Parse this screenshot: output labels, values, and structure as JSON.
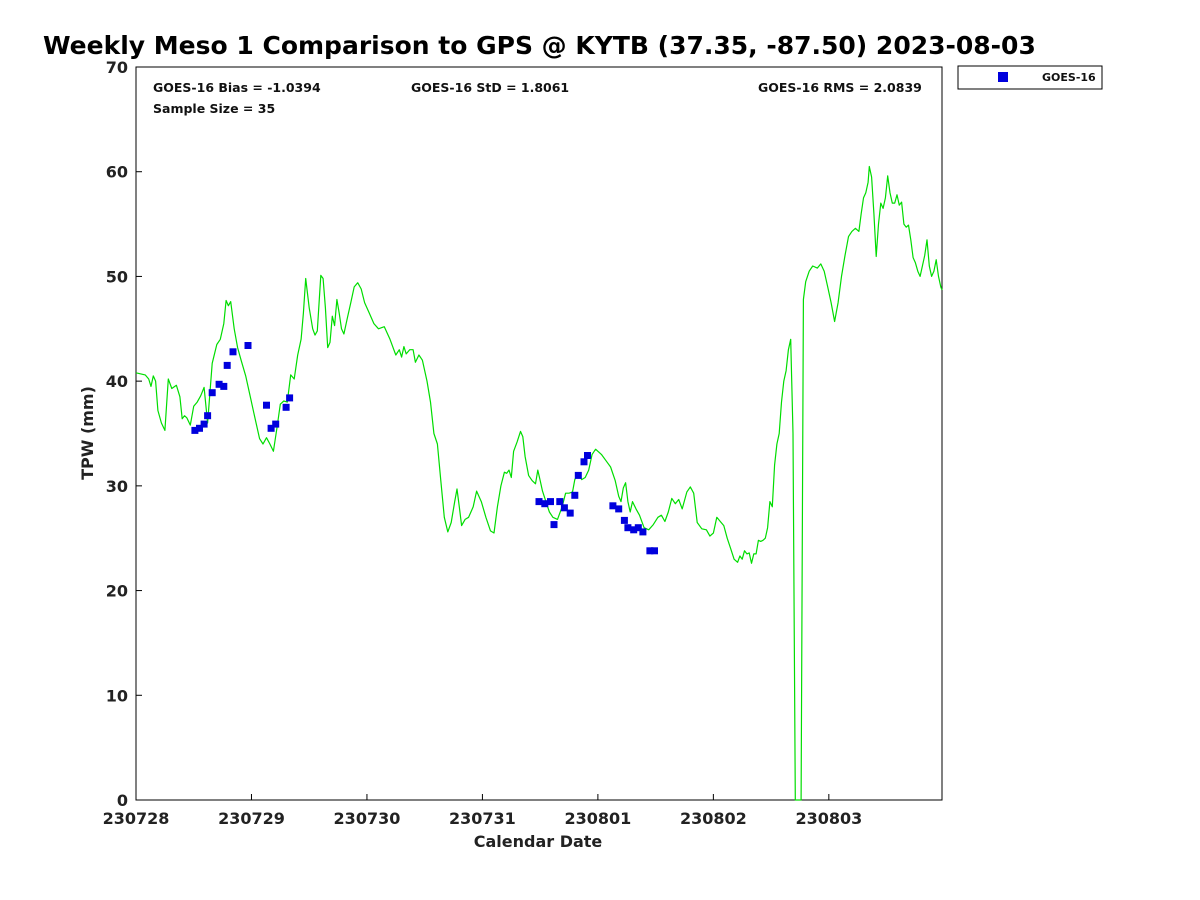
{
  "chart_data": {
    "type": "scatter",
    "title": "Weekly Meso 1 Comparison to GPS @ KYTB (37.35, -87.50) 2023-08-03",
    "xlabel": "Calendar Date",
    "ylabel": "TPW (mm)",
    "xlim": [
      0,
      6.98
    ],
    "ylim": [
      0,
      70
    ],
    "yticks": [
      0,
      10,
      20,
      30,
      40,
      50,
      60,
      70
    ],
    "xtick_positions": [
      0,
      1,
      2,
      3,
      4,
      5,
      6
    ],
    "xtick_labels": [
      "230728",
      "230729",
      "230730",
      "230731",
      "230801",
      "230802",
      "230803"
    ],
    "stats": {
      "bias": "GOES-16 Bias = -1.0394",
      "std": "GOES-16 StD = 1.8061",
      "rms": "GOES-16 RMS = 2.0839",
      "sample": "Sample Size = 35"
    },
    "legend": {
      "position": "top-right-outside",
      "label": "GOES-16"
    },
    "colors": {
      "gps_line": "#00dd00",
      "goes_points": "#0000dd",
      "axes": "#000000"
    },
    "series": [
      {
        "name": "GPS",
        "style": "line",
        "points": [
          [
            0.0,
            40.8
          ],
          [
            0.08,
            40.6
          ],
          [
            0.11,
            40.2
          ],
          [
            0.13,
            39.5
          ],
          [
            0.15,
            40.5
          ],
          [
            0.17,
            40.0
          ],
          [
            0.19,
            37.2
          ],
          [
            0.22,
            36.0
          ],
          [
            0.25,
            35.3
          ],
          [
            0.28,
            40.2
          ],
          [
            0.31,
            39.3
          ],
          [
            0.35,
            39.6
          ],
          [
            0.38,
            38.5
          ],
          [
            0.4,
            36.4
          ],
          [
            0.42,
            36.7
          ],
          [
            0.44,
            36.5
          ],
          [
            0.47,
            35.8
          ],
          [
            0.5,
            37.6
          ],
          [
            0.53,
            38.0
          ],
          [
            0.56,
            38.6
          ],
          [
            0.59,
            39.4
          ],
          [
            0.62,
            36.0
          ],
          [
            0.66,
            41.7
          ],
          [
            0.7,
            43.5
          ],
          [
            0.73,
            44.0
          ],
          [
            0.76,
            45.5
          ],
          [
            0.78,
            47.7
          ],
          [
            0.8,
            47.2
          ],
          [
            0.82,
            47.6
          ],
          [
            0.85,
            45.0
          ],
          [
            0.88,
            43.2
          ],
          [
            0.91,
            42.0
          ],
          [
            0.95,
            40.5
          ],
          [
            0.99,
            38.5
          ],
          [
            1.03,
            36.5
          ],
          [
            1.07,
            34.5
          ],
          [
            1.1,
            34.0
          ],
          [
            1.13,
            34.6
          ],
          [
            1.16,
            34.0
          ],
          [
            1.19,
            33.3
          ],
          [
            1.22,
            35.5
          ],
          [
            1.25,
            37.8
          ],
          [
            1.28,
            38.1
          ],
          [
            1.31,
            38.0
          ],
          [
            1.34,
            40.6
          ],
          [
            1.37,
            40.2
          ],
          [
            1.4,
            42.5
          ],
          [
            1.43,
            44.0
          ],
          [
            1.45,
            46.5
          ],
          [
            1.47,
            49.8
          ],
          [
            1.5,
            47.0
          ],
          [
            1.53,
            45.0
          ],
          [
            1.55,
            44.4
          ],
          [
            1.57,
            44.8
          ],
          [
            1.6,
            50.1
          ],
          [
            1.62,
            49.8
          ],
          [
            1.64,
            47.0
          ],
          [
            1.66,
            43.2
          ],
          [
            1.68,
            43.7
          ],
          [
            1.7,
            46.2
          ],
          [
            1.72,
            45.3
          ],
          [
            1.74,
            47.8
          ],
          [
            1.76,
            46.5
          ],
          [
            1.78,
            45.0
          ],
          [
            1.8,
            44.5
          ],
          [
            1.83,
            46.0
          ],
          [
            1.86,
            47.5
          ],
          [
            1.89,
            49.0
          ],
          [
            1.92,
            49.4
          ],
          [
            1.95,
            48.8
          ],
          [
            1.98,
            47.5
          ],
          [
            2.02,
            46.5
          ],
          [
            2.06,
            45.5
          ],
          [
            2.1,
            45.0
          ],
          [
            2.15,
            45.2
          ],
          [
            2.2,
            44.0
          ],
          [
            2.25,
            42.5
          ],
          [
            2.28,
            43.0
          ],
          [
            2.3,
            42.3
          ],
          [
            2.32,
            43.3
          ],
          [
            2.34,
            42.6
          ],
          [
            2.37,
            43.0
          ],
          [
            2.4,
            43.0
          ],
          [
            2.42,
            41.8
          ],
          [
            2.45,
            42.5
          ],
          [
            2.48,
            42.0
          ],
          [
            2.52,
            40.0
          ],
          [
            2.55,
            38.0
          ],
          [
            2.58,
            35.0
          ],
          [
            2.61,
            34.0
          ],
          [
            2.64,
            30.5
          ],
          [
            2.67,
            27.0
          ],
          [
            2.7,
            25.6
          ],
          [
            2.73,
            26.5
          ],
          [
            2.76,
            28.5
          ],
          [
            2.78,
            29.7
          ],
          [
            2.8,
            28.0
          ],
          [
            2.82,
            26.2
          ],
          [
            2.85,
            26.8
          ],
          [
            2.88,
            27.0
          ],
          [
            2.92,
            28.0
          ],
          [
            2.95,
            29.5
          ],
          [
            2.99,
            28.5
          ],
          [
            3.03,
            27.0
          ],
          [
            3.07,
            25.7
          ],
          [
            3.1,
            25.5
          ],
          [
            3.13,
            28.0
          ],
          [
            3.16,
            30.0
          ],
          [
            3.19,
            31.3
          ],
          [
            3.21,
            31.2
          ],
          [
            3.23,
            31.5
          ],
          [
            3.25,
            30.8
          ],
          [
            3.27,
            33.3
          ],
          [
            3.3,
            34.2
          ],
          [
            3.33,
            35.2
          ],
          [
            3.35,
            34.7
          ],
          [
            3.37,
            32.8
          ],
          [
            3.4,
            31.0
          ],
          [
            3.43,
            30.5
          ],
          [
            3.46,
            30.2
          ],
          [
            3.48,
            31.5
          ],
          [
            3.5,
            30.5
          ],
          [
            3.52,
            29.5
          ],
          [
            3.55,
            28.5
          ],
          [
            3.58,
            27.5
          ],
          [
            3.61,
            27.0
          ],
          [
            3.65,
            26.8
          ],
          [
            3.69,
            28.0
          ],
          [
            3.72,
            29.3
          ],
          [
            3.75,
            29.3
          ],
          [
            3.78,
            29.4
          ],
          [
            3.8,
            30.6
          ],
          [
            3.83,
            31.2
          ],
          [
            3.86,
            30.6
          ],
          [
            3.89,
            30.8
          ],
          [
            3.92,
            31.5
          ],
          [
            3.95,
            33.0
          ],
          [
            3.98,
            33.5
          ],
          [
            4.03,
            33.0
          ],
          [
            4.07,
            32.4
          ],
          [
            4.11,
            31.8
          ],
          [
            4.15,
            30.5
          ],
          [
            4.18,
            29.0
          ],
          [
            4.2,
            28.5
          ],
          [
            4.22,
            29.8
          ],
          [
            4.24,
            30.3
          ],
          [
            4.26,
            28.5
          ],
          [
            4.28,
            27.5
          ],
          [
            4.3,
            28.5
          ],
          [
            4.33,
            27.8
          ],
          [
            4.36,
            27.2
          ],
          [
            4.4,
            26.0
          ],
          [
            4.44,
            25.8
          ],
          [
            4.48,
            26.3
          ],
          [
            4.52,
            27.0
          ],
          [
            4.55,
            27.2
          ],
          [
            4.58,
            26.6
          ],
          [
            4.61,
            27.5
          ],
          [
            4.64,
            28.8
          ],
          [
            4.67,
            28.3
          ],
          [
            4.7,
            28.7
          ],
          [
            4.73,
            27.8
          ],
          [
            4.77,
            29.4
          ],
          [
            4.8,
            29.9
          ],
          [
            4.83,
            29.3
          ],
          [
            4.86,
            26.5
          ],
          [
            4.9,
            25.9
          ],
          [
            4.94,
            25.8
          ],
          [
            4.97,
            25.2
          ],
          [
            5.0,
            25.5
          ],
          [
            5.03,
            27.0
          ],
          [
            5.06,
            26.6
          ],
          [
            5.09,
            26.2
          ],
          [
            5.12,
            25.0
          ],
          [
            5.15,
            24.0
          ],
          [
            5.18,
            23.0
          ],
          [
            5.21,
            22.7
          ],
          [
            5.23,
            23.3
          ],
          [
            5.25,
            23.0
          ],
          [
            5.27,
            23.8
          ],
          [
            5.29,
            23.5
          ],
          [
            5.31,
            23.6
          ],
          [
            5.33,
            22.6
          ],
          [
            5.35,
            23.5
          ],
          [
            5.37,
            23.5
          ],
          [
            5.39,
            24.8
          ],
          [
            5.41,
            24.7
          ],
          [
            5.43,
            24.8
          ],
          [
            5.45,
            25.0
          ],
          [
            5.47,
            26.0
          ],
          [
            5.49,
            28.5
          ],
          [
            5.51,
            28.0
          ],
          [
            5.53,
            32.0
          ],
          [
            5.55,
            34.0
          ],
          [
            5.57,
            35.0
          ],
          [
            5.59,
            38.0
          ],
          [
            5.61,
            40.0
          ],
          [
            5.63,
            41.0
          ],
          [
            5.65,
            43.0
          ],
          [
            5.67,
            44.0
          ],
          [
            5.69,
            35.0
          ],
          [
            5.71,
            0.0
          ],
          [
            5.74,
            0.0
          ],
          [
            5.76,
            0.0
          ],
          [
            5.78,
            47.8
          ],
          [
            5.8,
            49.5
          ],
          [
            5.83,
            50.5
          ],
          [
            5.86,
            51.0
          ],
          [
            5.9,
            50.8
          ],
          [
            5.93,
            51.2
          ],
          [
            5.96,
            50.5
          ],
          [
            5.99,
            49.0
          ],
          [
            6.02,
            47.5
          ],
          [
            6.05,
            45.7
          ],
          [
            6.08,
            47.5
          ],
          [
            6.11,
            50.0
          ],
          [
            6.14,
            52.0
          ],
          [
            6.17,
            53.8
          ],
          [
            6.2,
            54.3
          ],
          [
            6.23,
            54.6
          ],
          [
            6.26,
            54.3
          ],
          [
            6.28,
            56.0
          ],
          [
            6.3,
            57.5
          ],
          [
            6.32,
            58.0
          ],
          [
            6.34,
            59.0
          ],
          [
            6.35,
            60.5
          ],
          [
            6.37,
            59.5
          ],
          [
            6.39,
            56.0
          ],
          [
            6.41,
            51.9
          ],
          [
            6.43,
            55.0
          ],
          [
            6.45,
            57.0
          ],
          [
            6.47,
            56.5
          ],
          [
            6.49,
            57.5
          ],
          [
            6.51,
            59.6
          ],
          [
            6.53,
            58.0
          ],
          [
            6.55,
            57.0
          ],
          [
            6.57,
            57.0
          ],
          [
            6.59,
            57.8
          ],
          [
            6.61,
            56.8
          ],
          [
            6.63,
            57.1
          ],
          [
            6.65,
            55.0
          ],
          [
            6.67,
            54.7
          ],
          [
            6.69,
            54.9
          ],
          [
            6.71,
            53.5
          ],
          [
            6.73,
            51.8
          ],
          [
            6.75,
            51.3
          ],
          [
            6.77,
            50.5
          ],
          [
            6.79,
            50.0
          ],
          [
            6.81,
            51.0
          ],
          [
            6.83,
            52.0
          ],
          [
            6.85,
            53.5
          ],
          [
            6.87,
            51.0
          ],
          [
            6.89,
            50.0
          ],
          [
            6.91,
            50.5
          ],
          [
            6.93,
            51.6
          ],
          [
            6.95,
            50.0
          ],
          [
            6.97,
            49.0
          ],
          [
            6.98,
            48.7
          ]
        ]
      },
      {
        "name": "GOES-16",
        "style": "markers",
        "points": [
          [
            0.51,
            35.3
          ],
          [
            0.55,
            35.5
          ],
          [
            0.59,
            35.9
          ],
          [
            0.62,
            36.7
          ],
          [
            0.66,
            38.9
          ],
          [
            0.72,
            39.7
          ],
          [
            0.76,
            39.5
          ],
          [
            0.79,
            41.5
          ],
          [
            0.84,
            42.8
          ],
          [
            0.97,
            43.4
          ],
          [
            1.13,
            37.7
          ],
          [
            1.17,
            35.5
          ],
          [
            1.21,
            35.9
          ],
          [
            1.3,
            37.5
          ],
          [
            1.33,
            38.4
          ],
          [
            3.49,
            28.5
          ],
          [
            3.54,
            28.3
          ],
          [
            3.59,
            28.5
          ],
          [
            3.62,
            26.3
          ],
          [
            3.67,
            28.5
          ],
          [
            3.71,
            27.9
          ],
          [
            3.76,
            27.4
          ],
          [
            3.8,
            29.1
          ],
          [
            3.83,
            31.0
          ],
          [
            3.88,
            32.3
          ],
          [
            3.91,
            32.9
          ],
          [
            4.13,
            28.1
          ],
          [
            4.18,
            27.8
          ],
          [
            4.23,
            26.7
          ],
          [
            4.26,
            26.0
          ],
          [
            4.31,
            25.8
          ],
          [
            4.35,
            26.0
          ],
          [
            4.39,
            25.6
          ],
          [
            4.45,
            23.8
          ],
          [
            4.49,
            23.8
          ]
        ]
      }
    ]
  }
}
